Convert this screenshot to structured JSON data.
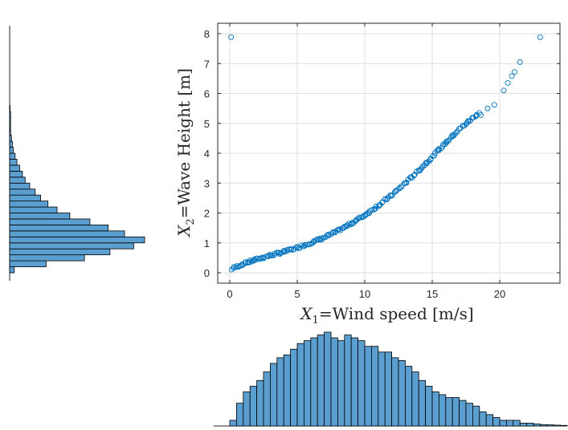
{
  "chart_data": [
    {
      "type": "scatter",
      "xlabel": {
        "var": "X",
        "sub": "1",
        "text": "=Wind speed [m/s]"
      },
      "ylabel": {
        "var": "X",
        "sub": "2",
        "text": "=Wave Height [m]"
      },
      "xlim": [
        -1.5,
        24.5
      ],
      "ylim": [
        -0.3,
        8.4
      ],
      "xticks": [
        "0",
        "5",
        "10",
        "15",
        "20"
      ],
      "xtick_values": [
        0,
        5,
        10,
        15,
        20
      ],
      "yticks": [
        "0",
        "1",
        "2",
        "3",
        "4",
        "5",
        "6",
        "7",
        "8"
      ],
      "ytick_values": [
        0,
        1,
        2,
        3,
        4,
        5,
        6,
        7,
        8
      ],
      "grid": true,
      "marker": "open-circle",
      "color": "#0072bd",
      "series": [
        {
          "curve_points": [
            [
              0.1,
              0.12
            ],
            [
              1,
              0.3
            ],
            [
              2,
              0.45
            ],
            [
              3,
              0.58
            ],
            [
              4,
              0.7
            ],
            [
              5,
              0.84
            ],
            [
              6,
              1.0
            ],
            [
              7,
              1.18
            ],
            [
              8,
              1.4
            ],
            [
              9,
              1.65
            ],
            [
              10,
              1.93
            ],
            [
              11,
              2.25
            ],
            [
              12,
              2.6
            ],
            [
              13,
              3.0
            ],
            [
              14,
              3.42
            ],
            [
              15,
              3.88
            ],
            [
              16,
              4.35
            ],
            [
              17,
              4.8
            ],
            [
              18,
              5.18
            ],
            [
              19,
              5.55
            ],
            [
              20,
              5.95
            ],
            [
              20.5,
              6.3
            ],
            [
              21,
              6.68
            ],
            [
              21.5,
              7.05
            ],
            [
              23,
              7.88
            ]
          ],
          "sparse_tail": [
            [
              18.6,
              5.28
            ],
            [
              19.1,
              5.5
            ],
            [
              19.6,
              5.62
            ],
            [
              20.3,
              6.1
            ],
            [
              20.6,
              6.35
            ],
            [
              20.9,
              6.58
            ],
            [
              21.1,
              6.72
            ],
            [
              21.5,
              7.05
            ],
            [
              23.0,
              7.88
            ]
          ]
        }
      ]
    },
    {
      "type": "bar",
      "orientation": "horizontal",
      "description_axis": "wave height marginal histogram",
      "bin_start": 0.0,
      "bin_width": 0.2,
      "counts": [
        5,
        40,
        82,
        110,
        136,
        148,
        126,
        108,
        88,
        66,
        52,
        42,
        34,
        28,
        22,
        17,
        14,
        11,
        8,
        6,
        4,
        3,
        2,
        1,
        1,
        1,
        1,
        0.5
      ],
      "color": "#5b9fd0"
    },
    {
      "type": "bar",
      "orientation": "vertical",
      "description_axis": "wind speed marginal histogram",
      "bin_start": 0.0,
      "bin_width": 0.5,
      "counts": [
        2,
        8,
        12,
        14,
        16,
        19,
        22,
        24,
        25,
        27,
        29,
        30,
        31,
        32,
        33,
        31,
        30,
        32,
        31,
        30,
        28,
        28,
        26,
        26,
        24,
        23,
        21,
        19,
        16,
        14,
        12,
        11,
        10,
        10,
        9,
        8,
        7,
        5,
        4,
        3,
        2,
        2,
        2,
        1,
        1,
        0.7,
        0.5,
        0.4,
        0.3,
        0.2
      ],
      "color": "#5b9fd0"
    }
  ]
}
